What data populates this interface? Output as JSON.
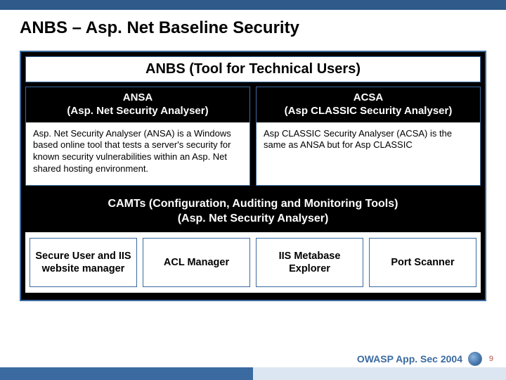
{
  "colors": {
    "accent": "#3a6aa0",
    "topbar": "#2f5a8a",
    "footer_light": "#dce6f2",
    "page_num": "#b05050"
  },
  "title": "ANBS – Asp. Net Baseline Security",
  "anbs_header": "ANBS (Tool for Technical Users)",
  "ansa": {
    "head_line1": "ANSA",
    "head_line2": "(Asp. Net Security Analyser)",
    "body": "Asp. Net Security Analyser (ANSA) is a Windows based online tool that tests a server's security for known security vulnerabilities within an Asp. Net shared hosting environment."
  },
  "acsa": {
    "head_line1": "ACSA",
    "head_line2": "(Asp CLASSIC Security Analyser)",
    "body": "Asp CLASSIC Security Analyser (ACSA) is the same as ANSA but for Asp CLASSIC"
  },
  "camts": {
    "line1": "CAMTs (Configuration, Auditing and Monitoring Tools)",
    "line2": "(Asp. Net Security Analyser)"
  },
  "tools": {
    "t1": "Secure User and IIS website manager",
    "t2": "ACL  Manager",
    "t3": "IIS Metabase Explorer",
    "t4": "Port Scanner"
  },
  "footer_label": "OWASP App. Sec 2004",
  "page_num": "9"
}
